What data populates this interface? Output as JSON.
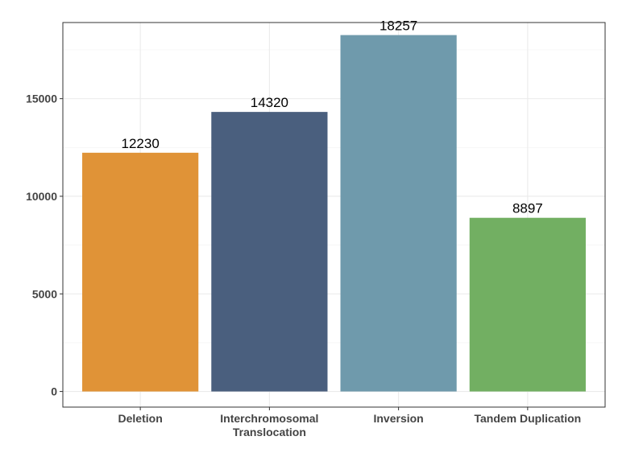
{
  "chart_data": {
    "type": "bar",
    "title": "",
    "xlabel": "",
    "ylabel": "",
    "categories": [
      [
        "Deletion"
      ],
      [
        "Interchromosomal",
        "Translocation"
      ],
      [
        "Inversion"
      ],
      [
        "Tandem Duplication"
      ]
    ],
    "values": [
      12230,
      14320,
      18257,
      8897
    ],
    "data_labels": [
      "12230",
      "14320",
      "18257",
      "8897"
    ],
    "colors": [
      "#E09337",
      "#4A5F7E",
      "#6F9AAC",
      "#72AF62"
    ],
    "ylim": [
      -800,
      18900
    ],
    "yticks": [
      0,
      5000,
      10000,
      15000
    ],
    "ytick_labels": [
      "0",
      "5000",
      "10000",
      "15000"
    ],
    "grid": true,
    "legend": "none"
  }
}
